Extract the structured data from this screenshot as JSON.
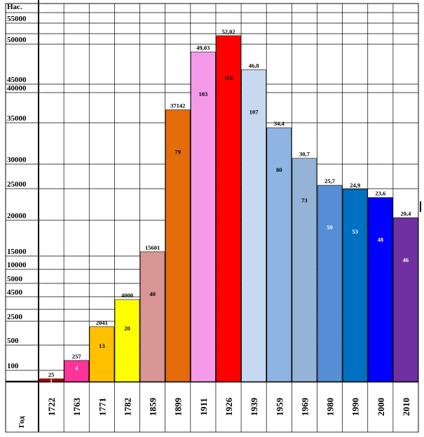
{
  "chart_data": {
    "type": "bar",
    "ylabel": "Нас.",
    "xlabel": "Год",
    "y_tick_labels": [
      "55000",
      "50000",
      "45000",
      "40000",
      "35000",
      "30000",
      "25000",
      "20000",
      "15000",
      "10000",
      "5000",
      "4500",
      "2500",
      "500",
      "100"
    ],
    "grid": true,
    "legend": "none",
    "categories": [
      "1722",
      "1763",
      "1771",
      "1782",
      "1859",
      "1899",
      "1911",
      "1926",
      "1939",
      "1959",
      "1969",
      "1980",
      "1990",
      "2000",
      "2010"
    ],
    "bars": [
      {
        "year": "1722",
        "population": 25,
        "top_label": "25",
        "inner_label": "1",
        "color": "#c00000",
        "inner_color": "#ffffff"
      },
      {
        "year": "1763",
        "population": 257,
        "top_label": "257",
        "inner_label": "4",
        "color": "#ff3399",
        "inner_color": "#ffffff"
      },
      {
        "year": "1771",
        "population": 2041,
        "top_label": "2041",
        "inner_label": "13",
        "color": "#ffc000",
        "inner_color": "#000000"
      },
      {
        "year": "1782",
        "population": 4000,
        "top_label": "4000",
        "inner_label": "20",
        "color": "#ffff00",
        "inner_color": "#000000"
      },
      {
        "year": "1859",
        "population": 15601,
        "top_label": "15601",
        "inner_label": "40",
        "color": "#d99694",
        "inner_color": "#000000"
      },
      {
        "year": "1899",
        "population": 37142,
        "top_label": "37142",
        "inner_label": "79",
        "color": "#e46c0a",
        "inner_color": "#000000"
      },
      {
        "year": "1911",
        "population": 49030,
        "top_label": "49,03",
        "inner_label": "103",
        "color": "#f49ae8",
        "inner_color": "#000000"
      },
      {
        "year": "1926",
        "population": 52020,
        "top_label": "52,02",
        "inner_label": "116",
        "color": "#ff0000",
        "inner_color": "#000000"
      },
      {
        "year": "1939",
        "population": 46800,
        "top_label": "46,8",
        "inner_label": "107",
        "color": "#c6d9f1",
        "inner_color": "#000000"
      },
      {
        "year": "1959",
        "population": 34400,
        "top_label": "34,4",
        "inner_label": "80",
        "color": "#8eb4e3",
        "inner_color": "#000000"
      },
      {
        "year": "1969",
        "population": 30700,
        "top_label": "30,7",
        "inner_label": "73",
        "color": "#95b3d7",
        "inner_color": "#000000"
      },
      {
        "year": "1980",
        "population": 25700,
        "top_label": "25,7",
        "inner_label": "59",
        "color": "#558ed5",
        "inner_color": "#ffffff"
      },
      {
        "year": "1990",
        "population": 24900,
        "top_label": "24,9",
        "inner_label": "53",
        "color": "#0070c0",
        "inner_color": "#ffffff"
      },
      {
        "year": "2000",
        "population": 23600,
        "top_label": "23,6",
        "inner_label": "48",
        "color": "#0000ff",
        "inner_color": "#ffffff"
      },
      {
        "year": "2010",
        "population": 20400,
        "top_label": "20,4",
        "inner_label": "46",
        "color": "#7030a0",
        "inner_color": "#ffffff"
      }
    ]
  }
}
